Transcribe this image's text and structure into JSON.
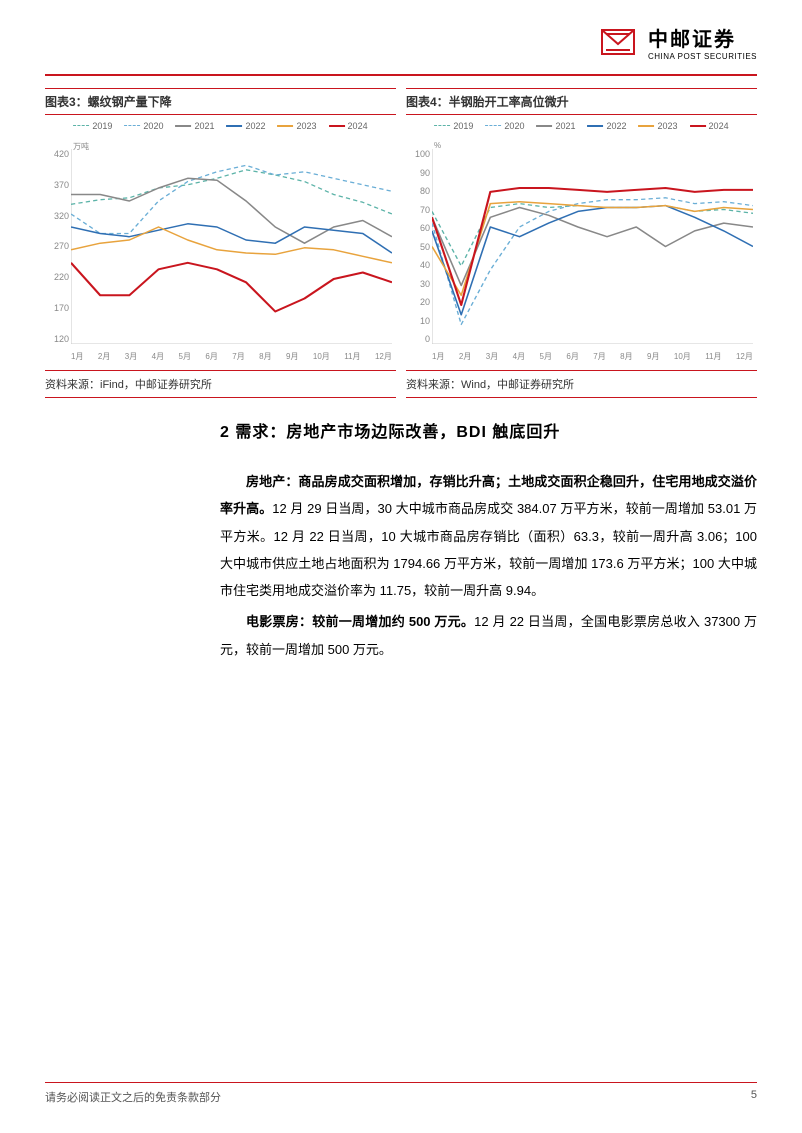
{
  "header": {
    "logo_cn": "中邮证券",
    "logo_en": "CHINA POST SECURITIES",
    "logo_fg": "#c9151e",
    "logo_bg": "#ffffff"
  },
  "chart3": {
    "title": "图表3：螺纹钢产量下降",
    "source": "资料来源：iFind，中邮证券研究所",
    "type": "line",
    "y_unit": "万吨",
    "ylim": [
      120,
      420
    ],
    "ytick_step": 50,
    "yticks": [
      "420",
      "370",
      "320",
      "270",
      "220",
      "170",
      "120"
    ],
    "xticks": [
      "1月",
      "2月",
      "3月",
      "4月",
      "5月",
      "6月",
      "7月",
      "8月",
      "9月",
      "10月",
      "11月",
      "12月"
    ],
    "background_color": "#ffffff",
    "axis_color": "#cccccc",
    "grid_color": "#eeeeee",
    "label_fontsize": 9,
    "series": [
      {
        "name": "2019",
        "color": "#5cb3a8",
        "dash": "4,3",
        "width": 1.3,
        "values": [
          335,
          342,
          345,
          360,
          365,
          375,
          388,
          380,
          370,
          350,
          338,
          320
        ]
      },
      {
        "name": "2020",
        "color": "#6aaed6",
        "dash": "4,3",
        "width": 1.3,
        "values": [
          320,
          290,
          290,
          340,
          370,
          385,
          395,
          380,
          385,
          375,
          365,
          355
        ]
      },
      {
        "name": "2021",
        "color": "#888888",
        "dash": "none",
        "width": 1.5,
        "values": [
          350,
          350,
          340,
          360,
          375,
          372,
          340,
          300,
          275,
          300,
          310,
          285
        ]
      },
      {
        "name": "2022",
        "color": "#2f6fb3",
        "dash": "none",
        "width": 1.5,
        "values": [
          300,
          290,
          285,
          295,
          305,
          300,
          280,
          275,
          300,
          295,
          290,
          260
        ]
      },
      {
        "name": "2023",
        "color": "#e8a33d",
        "dash": "none",
        "width": 1.5,
        "values": [
          265,
          275,
          280,
          300,
          280,
          265,
          260,
          258,
          268,
          265,
          255,
          245
        ]
      },
      {
        "name": "2024",
        "color": "#c9151e",
        "dash": "none",
        "width": 2,
        "values": [
          245,
          195,
          195,
          235,
          245,
          235,
          215,
          170,
          190,
          220,
          230,
          215
        ]
      }
    ]
  },
  "chart4": {
    "title": "图表4：半钢胎开工率高位微升",
    "source": "资料来源：Wind，中邮证券研究所",
    "type": "line",
    "y_unit": "%",
    "ylim": [
      0,
      100
    ],
    "ytick_step": 10,
    "yticks": [
      "100",
      "90",
      "80",
      "70",
      "60",
      "50",
      "40",
      "30",
      "20",
      "10",
      "0"
    ],
    "xticks": [
      "1月",
      "2月",
      "3月",
      "4月",
      "5月",
      "6月",
      "7月",
      "8月",
      "9月",
      "10月",
      "11月",
      "12月"
    ],
    "background_color": "#ffffff",
    "axis_color": "#cccccc",
    "grid_color": "#eeeeee",
    "label_fontsize": 9,
    "series": [
      {
        "name": "2019",
        "color": "#5cb3a8",
        "dash": "4,3",
        "width": 1.3,
        "values": [
          68,
          40,
          70,
          72,
          70,
          71,
          70,
          70,
          71,
          68,
          69,
          67
        ]
      },
      {
        "name": "2020",
        "color": "#6aaed6",
        "dash": "4,3",
        "width": 1.3,
        "values": [
          62,
          10,
          38,
          60,
          68,
          72,
          74,
          74,
          75,
          72,
          73,
          71
        ]
      },
      {
        "name": "2021",
        "color": "#888888",
        "dash": "none",
        "width": 1.5,
        "values": [
          65,
          30,
          65,
          70,
          66,
          60,
          55,
          60,
          50,
          58,
          62,
          60
        ]
      },
      {
        "name": "2022",
        "color": "#2f6fb3",
        "dash": "none",
        "width": 1.5,
        "values": [
          58,
          15,
          60,
          55,
          62,
          68,
          70,
          70,
          71,
          65,
          58,
          50
        ]
      },
      {
        "name": "2023",
        "color": "#e8a33d",
        "dash": "none",
        "width": 1.5,
        "values": [
          50,
          25,
          72,
          73,
          72,
          71,
          70,
          70,
          71,
          68,
          70,
          69
        ]
      },
      {
        "name": "2024",
        "color": "#c9151e",
        "dash": "none",
        "width": 2,
        "values": [
          65,
          20,
          78,
          80,
          80,
          79,
          78,
          79,
          80,
          78,
          79,
          79
        ]
      }
    ]
  },
  "section": {
    "heading": "2 需求：房地产市场边际改善，BDI 触底回升",
    "para1_lead": "房地产：商品房成交面积增加，存销比升高；土地成交面积企稳回升，住宅用地成交溢价率升高。",
    "para1_body": "12 月 29 日当周，30 大中城市商品房成交 384.07 万平方米，较前一周增加 53.01 万平方米。12 月 22 日当周，10 大城市商品房存销比（面积）63.3，较前一周升高 3.06；100 大中城市供应土地占地面积为 1794.66 万平方米，较前一周增加 173.6 万平方米；100 大中城市住宅类用地成交溢价率为 11.75，较前一周升高 9.94。",
    "para2_lead": "电影票房：较前一周增加约 500 万元。",
    "para2_body": "12 月 22 日当周，全国电影票房总收入 37300 万元，较前一周增加 500 万元。"
  },
  "footer": {
    "disclaimer": "请务必阅读正文之后的免责条款部分",
    "page": "5"
  }
}
